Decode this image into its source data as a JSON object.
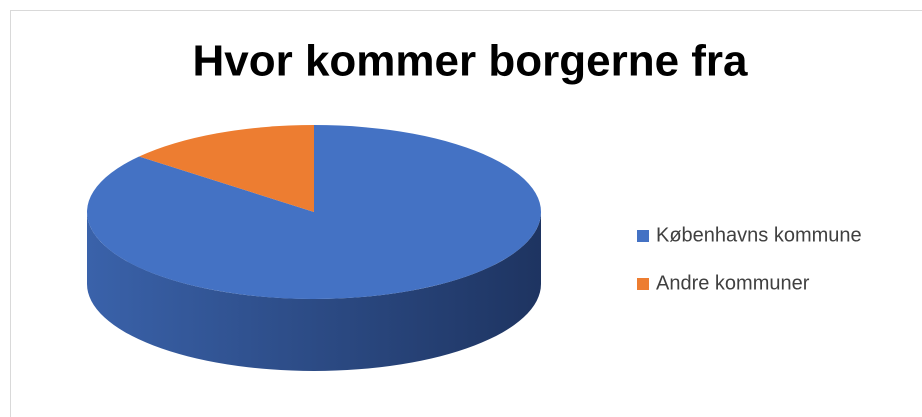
{
  "chart_data": {
    "type": "pie",
    "title": "Hvor kommer borgerne fra",
    "categories": [
      "Københavns kommune",
      "Andre kommuner"
    ],
    "values": [
      86,
      14
    ],
    "colors": [
      "#4472c4",
      "#ed7d31"
    ],
    "legend": "right",
    "style": "3d"
  }
}
